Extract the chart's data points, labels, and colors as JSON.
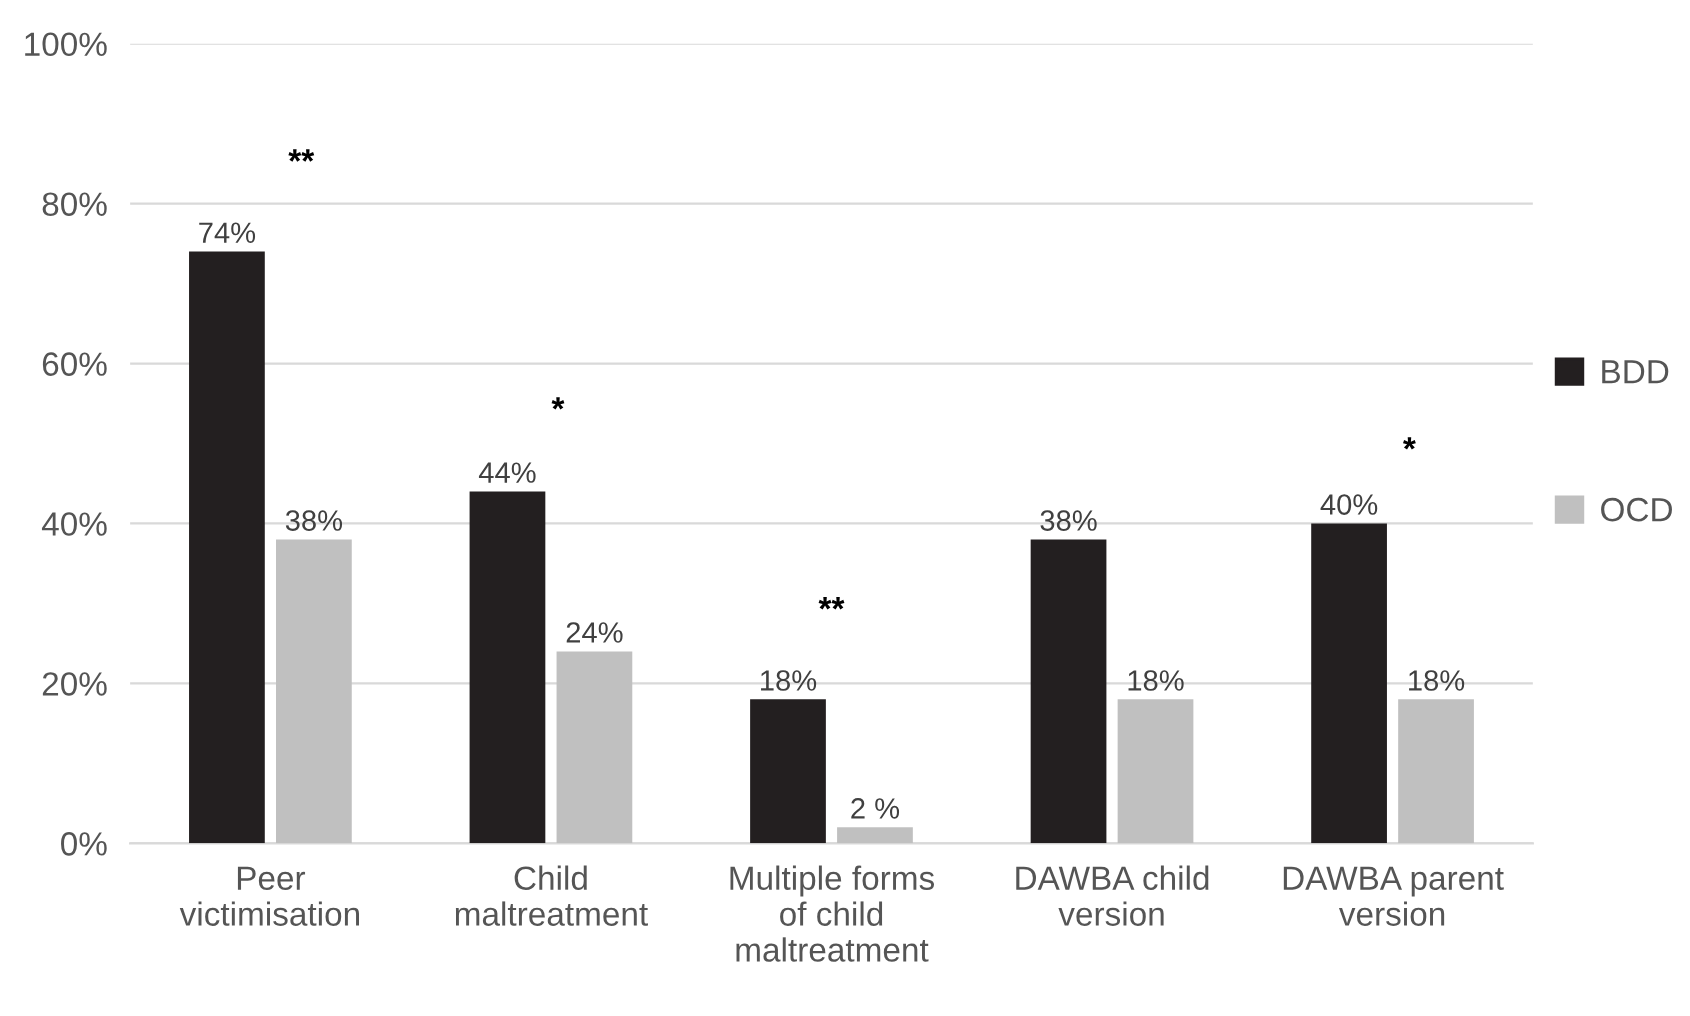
{
  "chart_data": {
    "type": "bar",
    "categories": [
      "Peer\nvictimisation",
      "Child\nmaltreatment",
      "Multiple forms\nof child\nmaltreatment",
      "DAWBA child\nversion",
      "DAWBA parent\nversion"
    ],
    "series": [
      {
        "name": "BDD",
        "color": "#231f20",
        "values": [
          74,
          44,
          18,
          38,
          40
        ],
        "value_labels": [
          "74%",
          "44%",
          "18%",
          "38%",
          "40%"
        ]
      },
      {
        "name": "OCD",
        "color": "#c0c0c0",
        "values": [
          38,
          24,
          2,
          18,
          18
        ],
        "value_labels": [
          "38%",
          "24%",
          "2 %",
          "18%",
          "18%"
        ]
      }
    ],
    "ylim": [
      0,
      100
    ],
    "yticks": [
      {
        "value": 0,
        "label": "0%"
      },
      {
        "value": 20,
        "label": "20%"
      },
      {
        "value": 40,
        "label": "40%"
      },
      {
        "value": 60,
        "label": "60%"
      },
      {
        "value": 80,
        "label": "80%"
      },
      {
        "value": 100,
        "label": "100%"
      }
    ],
    "grid": "y",
    "legend": "right",
    "annotations": [
      "**",
      "*",
      "**",
      "*"
    ]
  }
}
